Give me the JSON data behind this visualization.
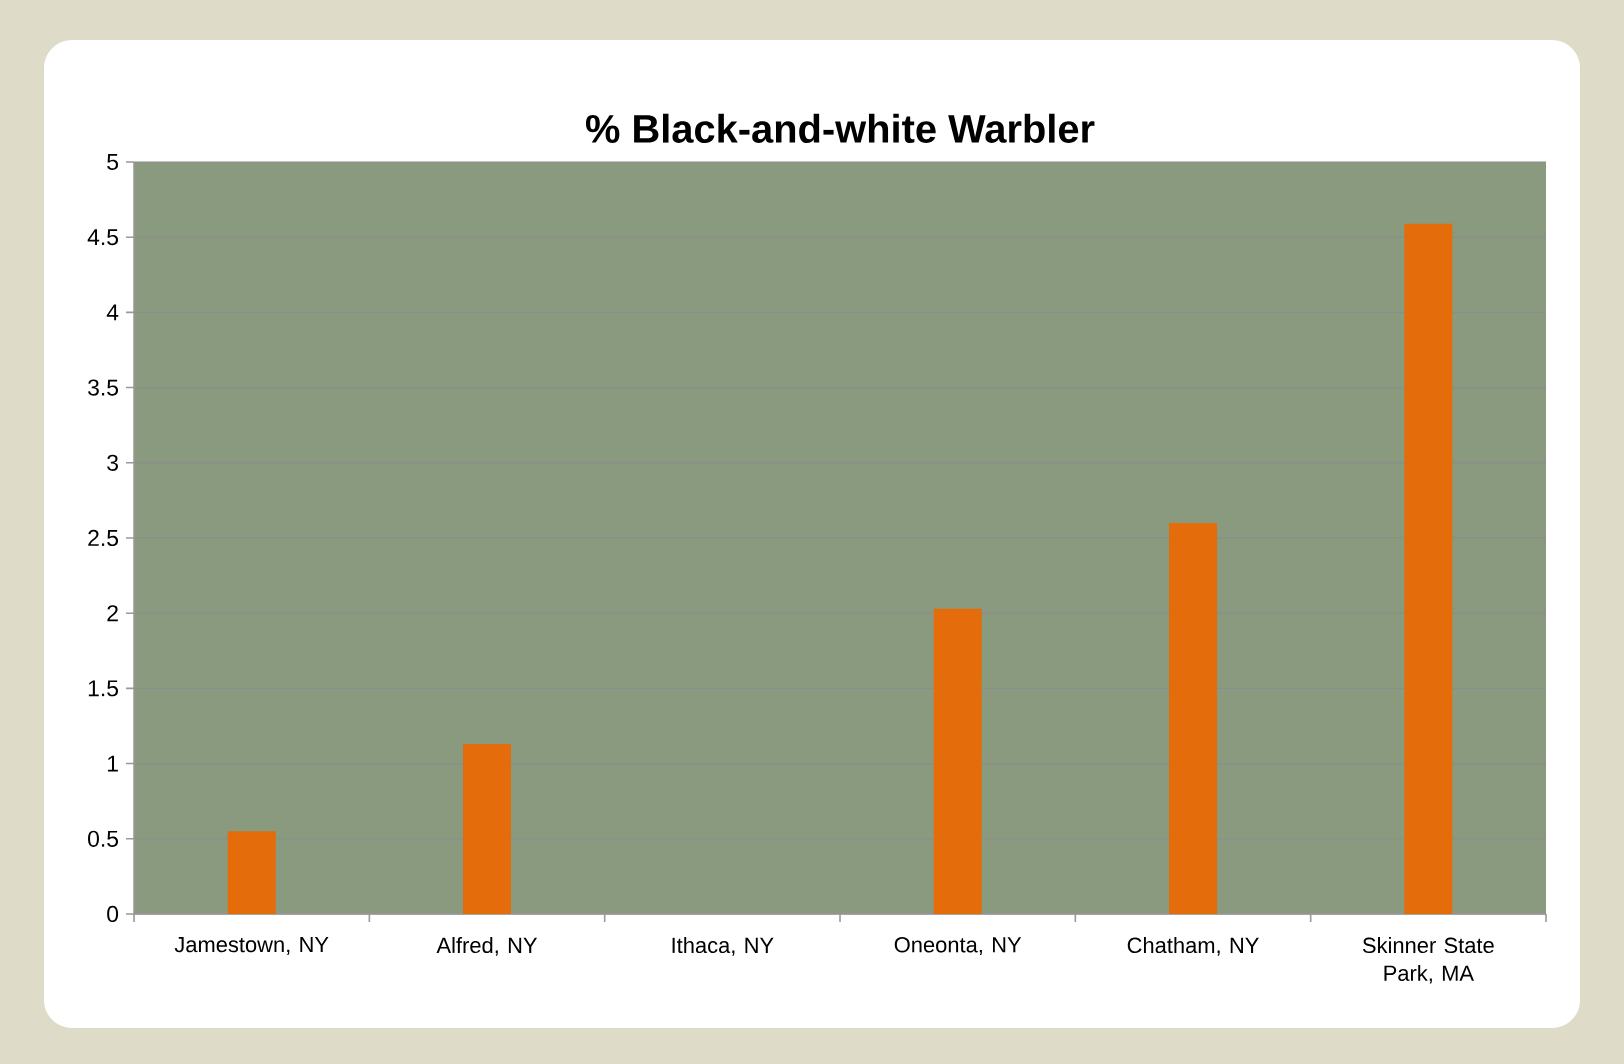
{
  "chart_data": {
    "type": "bar",
    "title": "% Black-and-white Warbler",
    "categories": [
      "Jamestown, NY",
      "Alfred, NY",
      "Ithaca, NY",
      "Oneonta, NY",
      "Chatham, NY",
      "Skinner State Park, MA"
    ],
    "values": [
      0.55,
      1.13,
      0,
      2.03,
      2.6,
      4.59
    ],
    "color": "#e46c0a",
    "ylim": [
      0,
      5
    ],
    "yticks": [
      0,
      0.5,
      1,
      1.5,
      2,
      2.5,
      3,
      3.5,
      4,
      4.5,
      5
    ],
    "grid": "y"
  }
}
